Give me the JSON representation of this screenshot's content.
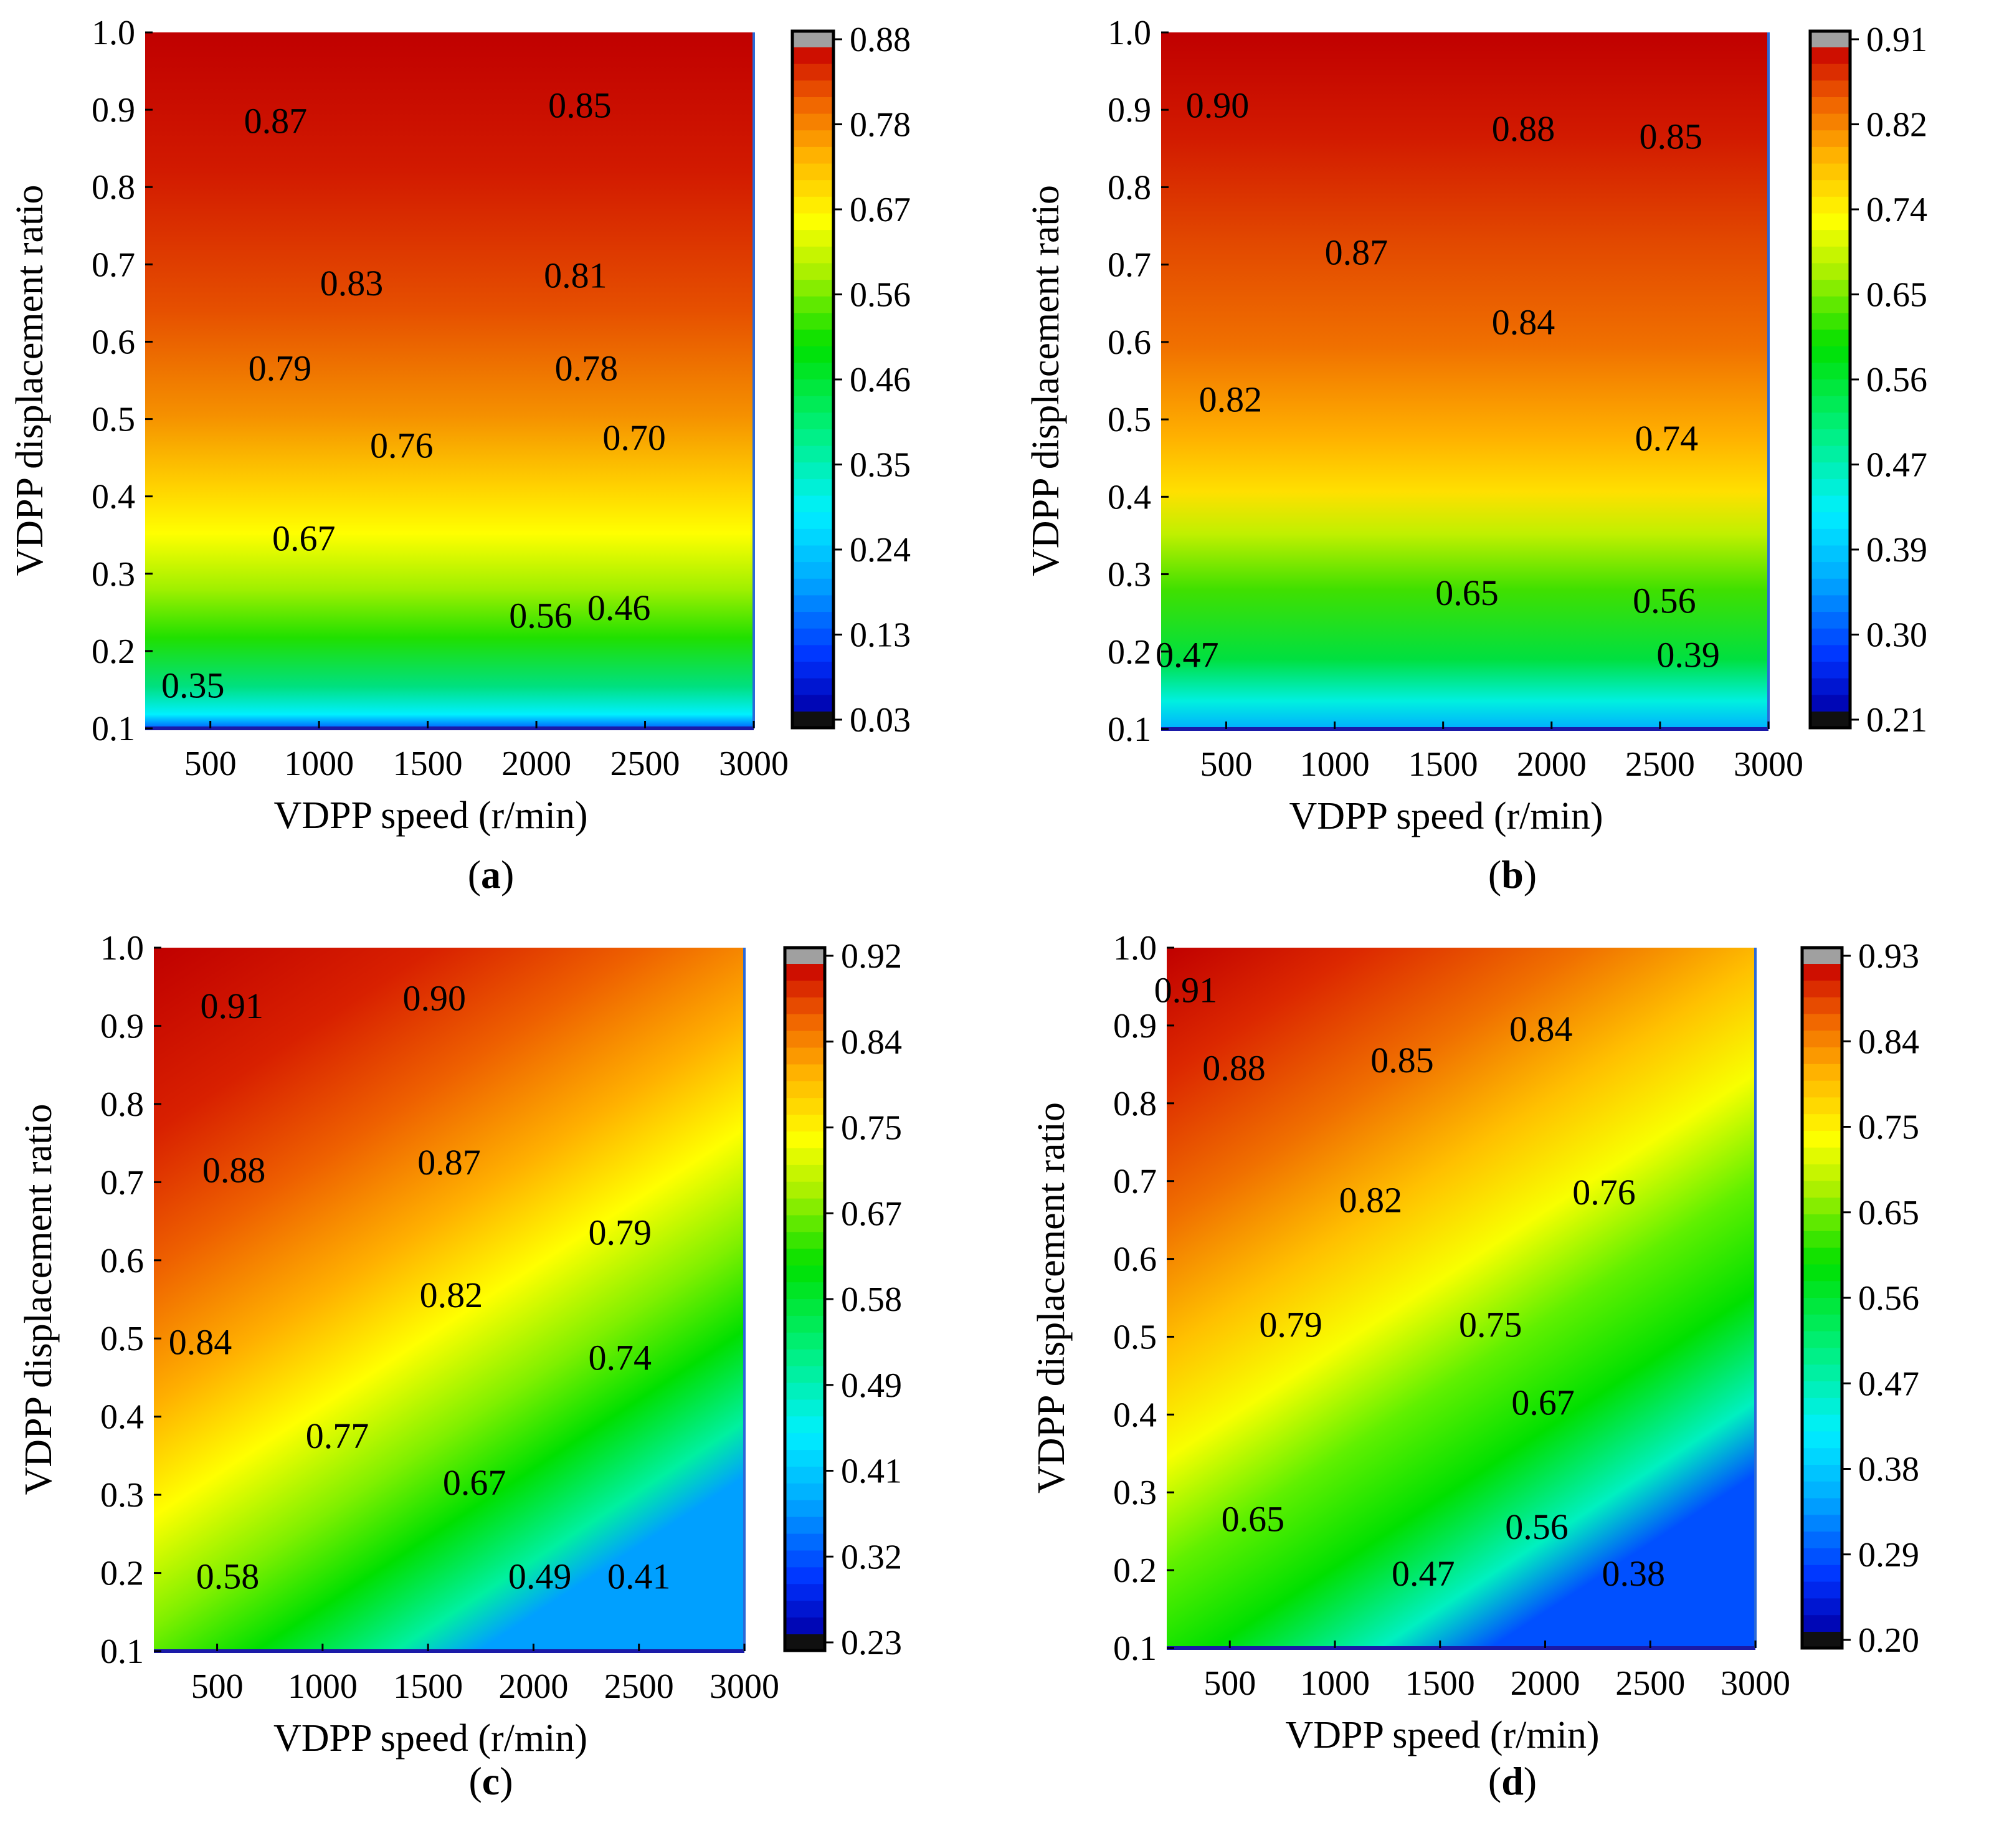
{
  "figure": {
    "description_panels": [
      "a",
      "b",
      "c",
      "d"
    ]
  },
  "chart_data": [
    {
      "type": "contour",
      "panel_label": "a",
      "xlabel": "VDPP speed (r/min)",
      "ylabel": "VDPP displacement ratio",
      "xlim": [
        200,
        3000
      ],
      "ylim": [
        0.1,
        1.0
      ],
      "xticks": [
        500,
        1000,
        1500,
        2000,
        2500,
        3000
      ],
      "xtick_labels": [
        "500",
        "1000",
        "1500",
        "2000",
        "2500",
        "3000"
      ],
      "yticks": [
        0.1,
        0.2,
        0.3,
        0.4,
        0.5,
        0.6,
        0.7,
        0.8,
        0.9,
        1.0
      ],
      "ytick_labels": [
        "0.1",
        "0.2",
        "0.3",
        "0.4",
        "0.5",
        "0.6",
        "0.7",
        "0.8",
        "0.9",
        "1.0"
      ],
      "colorbar": {
        "min": 0.03,
        "max": 0.88,
        "tick_labels": [
          "0.88",
          "0.78",
          "0.67",
          "0.56",
          "0.46",
          "0.35",
          "0.24",
          "0.13",
          "0.03"
        ]
      },
      "contour_labels": [
        {
          "text": "0.87",
          "x": 800,
          "y": 0.87
        },
        {
          "text": "0.85",
          "x": 2200,
          "y": 0.89
        },
        {
          "text": "0.83",
          "x": 1150,
          "y": 0.66
        },
        {
          "text": "0.81",
          "x": 2180,
          "y": 0.67
        },
        {
          "text": "0.79",
          "x": 820,
          "y": 0.55
        },
        {
          "text": "0.78",
          "x": 2230,
          "y": 0.55
        },
        {
          "text": "0.76",
          "x": 1380,
          "y": 0.45
        },
        {
          "text": "0.70",
          "x": 2450,
          "y": 0.46
        },
        {
          "text": "0.67",
          "x": 930,
          "y": 0.33
        },
        {
          "text": "0.56",
          "x": 2020,
          "y": 0.23
        },
        {
          "text": "0.46",
          "x": 2380,
          "y": 0.24
        },
        {
          "text": "0.35",
          "x": 420,
          "y": 0.14
        }
      ]
    },
    {
      "type": "contour",
      "panel_label": "b",
      "xlabel": "VDPP speed (r/min)",
      "ylabel": "VDPP displacement ratio",
      "xlim": [
        200,
        3000
      ],
      "ylim": [
        0.1,
        1.0
      ],
      "xticks": [
        500,
        1000,
        1500,
        2000,
        2500,
        3000
      ],
      "xtick_labels": [
        "500",
        "1000",
        "1500",
        "2000",
        "2500",
        "3000"
      ],
      "yticks": [
        0.1,
        0.2,
        0.3,
        0.4,
        0.5,
        0.6,
        0.7,
        0.8,
        0.9,
        1.0
      ],
      "ytick_labels": [
        "0.1",
        "0.2",
        "0.3",
        "0.4",
        "0.5",
        "0.6",
        "0.7",
        "0.8",
        "0.9",
        "1.0"
      ],
      "colorbar": {
        "min": 0.21,
        "max": 0.91,
        "tick_labels": [
          "0.91",
          "0.82",
          "0.74",
          "0.65",
          "0.56",
          "0.47",
          "0.39",
          "0.30",
          "0.21"
        ]
      },
      "contour_labels": [
        {
          "text": "0.90",
          "x": 460,
          "y": 0.89
        },
        {
          "text": "0.88",
          "x": 1870,
          "y": 0.86
        },
        {
          "text": "0.85",
          "x": 2550,
          "y": 0.85
        },
        {
          "text": "0.87",
          "x": 1100,
          "y": 0.7
        },
        {
          "text": "0.84",
          "x": 1870,
          "y": 0.61
        },
        {
          "text": "0.82",
          "x": 520,
          "y": 0.51
        },
        {
          "text": "0.74",
          "x": 2530,
          "y": 0.46
        },
        {
          "text": "0.65",
          "x": 1610,
          "y": 0.26
        },
        {
          "text": "0.56",
          "x": 2520,
          "y": 0.25
        },
        {
          "text": "0.47",
          "x": 320,
          "y": 0.18
        },
        {
          "text": "0.39",
          "x": 2630,
          "y": 0.18
        }
      ]
    },
    {
      "type": "contour",
      "panel_label": "c",
      "xlabel": "VDPP speed (r/min)",
      "ylabel": "VDPP displacement ratio",
      "xlim": [
        200,
        3000
      ],
      "ylim": [
        0.1,
        1.0
      ],
      "xticks": [
        500,
        1000,
        1500,
        2000,
        2500,
        3000
      ],
      "xtick_labels": [
        "500",
        "1000",
        "1500",
        "2000",
        "2500",
        "3000"
      ],
      "yticks": [
        0.1,
        0.2,
        0.3,
        0.4,
        0.5,
        0.6,
        0.7,
        0.8,
        0.9,
        1.0
      ],
      "ytick_labels": [
        "0.1",
        "0.2",
        "0.3",
        "0.4",
        "0.5",
        "0.6",
        "0.7",
        "0.8",
        "0.9",
        "1.0"
      ],
      "colorbar": {
        "min": 0.23,
        "max": 0.92,
        "tick_labels": [
          "0.92",
          "0.84",
          "0.75",
          "0.67",
          "0.58",
          "0.49",
          "0.41",
          "0.32",
          "0.23"
        ]
      },
      "contour_labels": [
        {
          "text": "0.91",
          "x": 570,
          "y": 0.91
        },
        {
          "text": "0.90",
          "x": 1530,
          "y": 0.92
        },
        {
          "text": "0.88",
          "x": 580,
          "y": 0.7
        },
        {
          "text": "0.87",
          "x": 1600,
          "y": 0.71
        },
        {
          "text": "0.79",
          "x": 2410,
          "y": 0.62
        },
        {
          "text": "0.82",
          "x": 1610,
          "y": 0.54
        },
        {
          "text": "0.84",
          "x": 420,
          "y": 0.48
        },
        {
          "text": "0.74",
          "x": 2410,
          "y": 0.46
        },
        {
          "text": "0.77",
          "x": 1070,
          "y": 0.36
        },
        {
          "text": "0.67",
          "x": 1720,
          "y": 0.3
        },
        {
          "text": "0.58",
          "x": 550,
          "y": 0.18
        },
        {
          "text": "0.49",
          "x": 2030,
          "y": 0.18
        },
        {
          "text": "0.41",
          "x": 2500,
          "y": 0.18
        }
      ]
    },
    {
      "type": "contour",
      "panel_label": "d",
      "xlabel": "VDPP speed (r/min)",
      "ylabel": "VDPP displacement ratio",
      "xlim": [
        200,
        3000
      ],
      "ylim": [
        0.1,
        1.0
      ],
      "xticks": [
        500,
        1000,
        1500,
        2000,
        2500,
        3000
      ],
      "xtick_labels": [
        "500",
        "1000",
        "1500",
        "2000",
        "2500",
        "3000"
      ],
      "yticks": [
        0.1,
        0.2,
        0.3,
        0.4,
        0.5,
        0.6,
        0.7,
        0.8,
        0.9,
        1.0
      ],
      "ytick_labels": [
        "0.1",
        "0.2",
        "0.3",
        "0.4",
        "0.5",
        "0.6",
        "0.7",
        "0.8",
        "0.9",
        "1.0"
      ],
      "colorbar": {
        "min": 0.2,
        "max": 0.93,
        "tick_labels": [
          "0.93",
          "0.84",
          "0.75",
          "0.65",
          "0.56",
          "0.47",
          "0.38",
          "0.29",
          "0.20"
        ]
      },
      "contour_labels": [
        {
          "text": "0.91",
          "x": 290,
          "y": 0.93
        },
        {
          "text": "0.84",
          "x": 1980,
          "y": 0.88
        },
        {
          "text": "0.88",
          "x": 520,
          "y": 0.83
        },
        {
          "text": "0.85",
          "x": 1320,
          "y": 0.84
        },
        {
          "text": "0.82",
          "x": 1170,
          "y": 0.66
        },
        {
          "text": "0.76",
          "x": 2280,
          "y": 0.67
        },
        {
          "text": "0.79",
          "x": 790,
          "y": 0.5
        },
        {
          "text": "0.75",
          "x": 1740,
          "y": 0.5
        },
        {
          "text": "0.67",
          "x": 1990,
          "y": 0.4
        },
        {
          "text": "0.65",
          "x": 610,
          "y": 0.25
        },
        {
          "text": "0.56",
          "x": 1960,
          "y": 0.24
        },
        {
          "text": "0.47",
          "x": 1420,
          "y": 0.18
        },
        {
          "text": "0.38",
          "x": 2420,
          "y": 0.18
        }
      ]
    }
  ]
}
